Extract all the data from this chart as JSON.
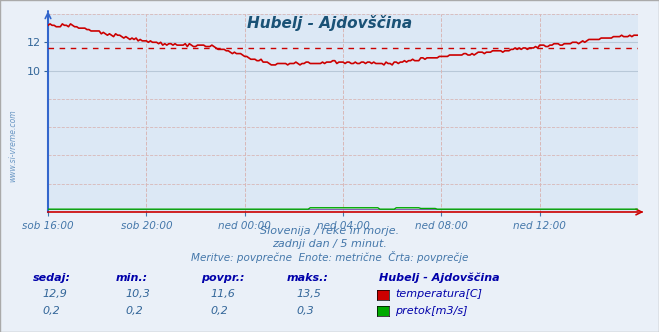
{
  "title": "Hubelj - Ajdovščina",
  "title_color": "#1a5276",
  "bg_color": "#eaf0f8",
  "plot_bg_color": "#dce8f5",
  "grid_color_h": "#b8c8d8",
  "grid_color_v": "#d8b8b8",
  "border_color": "#aaaaaa",
  "x_labels": [
    "sob 16:00",
    "sob 20:00",
    "ned 00:00",
    "ned 04:00",
    "ned 08:00",
    "ned 12:00"
  ],
  "x_ticks_idx": [
    0,
    48,
    96,
    144,
    192,
    240
  ],
  "x_max": 288,
  "y_ticks": [
    10,
    12
  ],
  "ylim": [
    0,
    14
  ],
  "avg_line": 11.6,
  "temp_color": "#cc0000",
  "flow_color": "#00aa00",
  "flow_color2": "#8800aa",
  "axis_left_color": "#3366cc",
  "axis_bottom_color": "#cc0000",
  "watermark_color": "#5588bb",
  "watermark_text": "www.si-vreme.com",
  "subtitle1": "Slovenija / reke in morje.",
  "subtitle2": "zadnji dan / 5 minut.",
  "subtitle3": "Meritve: povprečne  Enote: metrične  Črta: povprečje",
  "subtitle_color": "#4477aa",
  "stats_header_color": "#0000aa",
  "stats_value_color": "#336699",
  "footer_label": "Hubelj - Ajdovščina",
  "stats_headers": [
    "sedaj:",
    "min.:",
    "povpr.:",
    "maks.:"
  ],
  "stats_temp": [
    "12,9",
    "10,3",
    "11,6",
    "13,5"
  ],
  "stats_flow": [
    "0,2",
    "0,2",
    "0,2",
    "0,3"
  ],
  "legend_temp": "temperatura[C]",
  "legend_flow": "pretok[m3/s]"
}
